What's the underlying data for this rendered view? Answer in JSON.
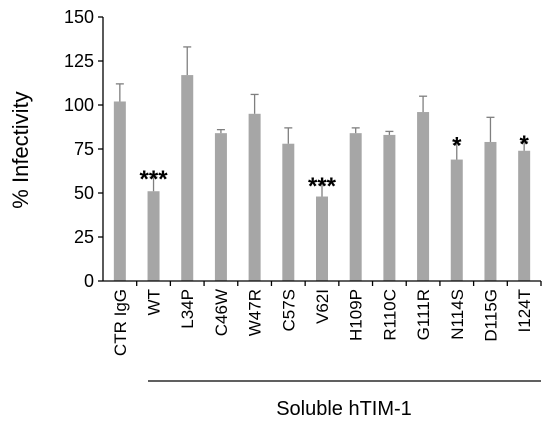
{
  "chart_data": {
    "type": "bar",
    "ylabel": "% Infectivity",
    "ylim": [
      0,
      150
    ],
    "yticks": [
      "0",
      "25",
      "50",
      "75",
      "100",
      "125",
      "150"
    ],
    "categories": [
      "CTR IgG",
      "WT",
      "L34P",
      "C46W",
      "W47R",
      "C57S",
      "V62I",
      "H109P",
      "R110C",
      "G111R",
      "N114S",
      "D115G",
      "I124T"
    ],
    "values": [
      102,
      51,
      117,
      84,
      95,
      78,
      48,
      84,
      83,
      96,
      69,
      79,
      74
    ],
    "errors": [
      10,
      8,
      16,
      2,
      11,
      9,
      7,
      3,
      2,
      9,
      9,
      14,
      5
    ],
    "significance": [
      "",
      "***",
      "",
      "",
      "",
      "",
      "***",
      "",
      "",
      "",
      "*",
      "",
      "*"
    ],
    "group_label": "Soluble hTIM-1",
    "grid": false,
    "legend": "none",
    "colors": {
      "bar": "#a6a6a6",
      "error": "#7f7f7f"
    }
  }
}
